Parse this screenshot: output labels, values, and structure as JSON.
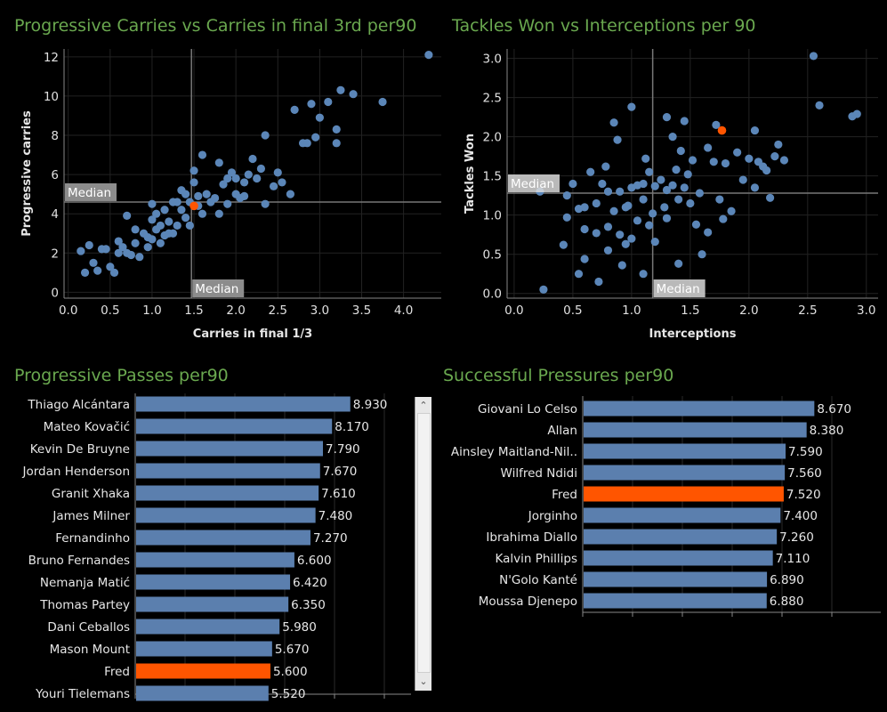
{
  "titles": {
    "carries": "Progressive Carries vs Carries in final 3rd per90",
    "tackles": "Tackles Won vs Interceptions per 90",
    "passes": "Progressive Passes per90",
    "pressures": "Successful Pressures per90"
  },
  "colors": {
    "accent": "#6aa84f",
    "point": "#5b86b8",
    "highlight": "#ff5500",
    "bar": "#5b7fae"
  },
  "chart_data": [
    {
      "type": "scatter",
      "title": "Progressive Carries vs Carries in final 3rd per90",
      "xlabel": "Carries in final 1/3",
      "ylabel": "Progressive carries",
      "xlim": [
        -0.05,
        4.45
      ],
      "ylim": [
        -0.3,
        12.4
      ],
      "xticks": [
        "0.0",
        "0.5",
        "1.0",
        "1.5",
        "2.0",
        "2.5",
        "3.0",
        "3.5",
        "4.0"
      ],
      "yticks": [
        "0",
        "2",
        "4",
        "6",
        "8",
        "10",
        "12"
      ],
      "median_x": 1.47,
      "median_y": 4.6,
      "median_label": "Median",
      "highlight": {
        "name": "Fred",
        "x": 1.5,
        "y": 4.4
      },
      "points": [
        [
          0.15,
          2.1
        ],
        [
          0.2,
          1.0
        ],
        [
          0.25,
          2.4
        ],
        [
          0.3,
          1.5
        ],
        [
          0.4,
          2.2
        ],
        [
          0.45,
          2.2
        ],
        [
          0.5,
          1.3
        ],
        [
          0.55,
          1.0
        ],
        [
          0.6,
          2.0
        ],
        [
          0.6,
          2.6
        ],
        [
          0.65,
          2.3
        ],
        [
          0.7,
          2.0
        ],
        [
          0.7,
          3.9
        ],
        [
          0.75,
          1.9
        ],
        [
          0.8,
          2.5
        ],
        [
          0.8,
          3.2
        ],
        [
          0.85,
          1.8
        ],
        [
          0.9,
          3.0
        ],
        [
          0.95,
          2.3
        ],
        [
          0.95,
          2.8
        ],
        [
          1.0,
          4.5
        ],
        [
          1.0,
          3.7
        ],
        [
          1.0,
          2.7
        ],
        [
          1.05,
          3.2
        ],
        [
          1.05,
          4.0
        ],
        [
          1.1,
          2.5
        ],
        [
          1.1,
          3.4
        ],
        [
          1.15,
          4.2
        ],
        [
          1.2,
          3.0
        ],
        [
          1.2,
          3.6
        ],
        [
          1.25,
          3.0
        ],
        [
          1.25,
          4.6
        ],
        [
          1.3,
          3.4
        ],
        [
          1.3,
          4.6
        ],
        [
          1.35,
          4.2
        ],
        [
          1.4,
          3.8
        ],
        [
          1.4,
          5.0
        ],
        [
          1.45,
          4.6
        ],
        [
          1.45,
          3.4
        ],
        [
          1.5,
          5.6
        ],
        [
          1.5,
          6.2
        ],
        [
          1.55,
          4.4
        ],
        [
          1.55,
          4.9
        ],
        [
          1.6,
          7.0
        ],
        [
          1.6,
          4.0
        ],
        [
          1.65,
          5.0
        ],
        [
          1.7,
          4.6
        ],
        [
          1.75,
          4.8
        ],
        [
          1.8,
          4.0
        ],
        [
          1.8,
          6.6
        ],
        [
          1.85,
          5.5
        ],
        [
          1.9,
          4.5
        ],
        [
          1.9,
          5.8
        ],
        [
          1.95,
          6.1
        ],
        [
          2.0,
          5.0
        ],
        [
          2.0,
          5.8
        ],
        [
          2.05,
          4.8
        ],
        [
          2.1,
          5.6
        ],
        [
          2.15,
          6.0
        ],
        [
          2.2,
          6.8
        ],
        [
          2.25,
          5.8
        ],
        [
          2.3,
          6.3
        ],
        [
          2.35,
          4.5
        ],
        [
          2.35,
          8.0
        ],
        [
          2.45,
          5.4
        ],
        [
          2.5,
          6.1
        ],
        [
          2.55,
          5.6
        ],
        [
          2.65,
          5.0
        ],
        [
          2.7,
          9.3
        ],
        [
          2.8,
          7.6
        ],
        [
          2.85,
          7.6
        ],
        [
          2.9,
          9.6
        ],
        [
          2.95,
          7.9
        ],
        [
          3.0,
          8.9
        ],
        [
          3.1,
          9.7
        ],
        [
          3.2,
          8.3
        ],
        [
          3.2,
          7.6
        ],
        [
          3.25,
          10.3
        ],
        [
          3.4,
          10.1
        ],
        [
          3.75,
          9.7
        ],
        [
          4.3,
          12.1
        ],
        [
          2.1,
          4.9
        ],
        [
          1.35,
          5.2
        ],
        [
          0.35,
          1.1
        ],
        [
          1.15,
          2.9
        ]
      ]
    },
    {
      "type": "scatter",
      "title": "Tackles Won vs Interceptions per 90",
      "xlabel": "Interceptions",
      "ylabel": "Tackles Won",
      "xlim": [
        -0.06,
        3.1
      ],
      "ylim": [
        -0.06,
        3.12
      ],
      "xticks": [
        "0.0",
        "0.5",
        "1.0",
        "1.5",
        "2.0",
        "2.5",
        "3.0"
      ],
      "yticks": [
        "0.0",
        "0.5",
        "1.0",
        "1.5",
        "2.0",
        "2.5",
        "3.0"
      ],
      "median_x": 1.18,
      "median_y": 1.28,
      "median_label": "Median",
      "highlight": {
        "name": "Fred",
        "x": 1.77,
        "y": 2.08
      },
      "points": [
        [
          0.22,
          1.3
        ],
        [
          0.25,
          0.05
        ],
        [
          0.42,
          0.62
        ],
        [
          0.45,
          1.25
        ],
        [
          0.45,
          0.97
        ],
        [
          0.5,
          1.4
        ],
        [
          0.55,
          1.08
        ],
        [
          0.6,
          0.82
        ],
        [
          0.6,
          0.44
        ],
        [
          0.65,
          1.55
        ],
        [
          0.7,
          1.15
        ],
        [
          0.7,
          0.77
        ],
        [
          0.75,
          1.4
        ],
        [
          0.8,
          1.3
        ],
        [
          0.8,
          0.55
        ],
        [
          0.8,
          0.85
        ],
        [
          0.85,
          1.05
        ],
        [
          0.88,
          1.96
        ],
        [
          0.9,
          1.3
        ],
        [
          0.9,
          0.75
        ],
        [
          0.92,
          0.36
        ],
        [
          0.95,
          0.63
        ],
        [
          0.95,
          1.1
        ],
        [
          1.0,
          1.35
        ],
        [
          1.0,
          0.7
        ],
        [
          1.05,
          1.38
        ],
        [
          1.05,
          0.93
        ],
        [
          1.1,
          1.4
        ],
        [
          1.1,
          1.2
        ],
        [
          1.12,
          1.72
        ],
        [
          1.15,
          0.87
        ],
        [
          1.18,
          1.02
        ],
        [
          1.2,
          1.37
        ],
        [
          1.2,
          0.66
        ],
        [
          1.25,
          1.45
        ],
        [
          1.28,
          1.1
        ],
        [
          1.3,
          1.32
        ],
        [
          1.3,
          0.96
        ],
        [
          1.35,
          1.38
        ],
        [
          1.35,
          2.0
        ],
        [
          1.38,
          1.58
        ],
        [
          1.4,
          1.2
        ],
        [
          1.42,
          1.82
        ],
        [
          1.45,
          2.2
        ],
        [
          1.48,
          1.52
        ],
        [
          1.5,
          1.15
        ],
        [
          1.52,
          1.7
        ],
        [
          1.55,
          0.88
        ],
        [
          1.58,
          1.28
        ],
        [
          1.6,
          0.5
        ],
        [
          1.65,
          1.86
        ],
        [
          1.7,
          1.68
        ],
        [
          1.72,
          2.15
        ],
        [
          1.75,
          1.2
        ],
        [
          1.78,
          0.95
        ],
        [
          1.8,
          1.66
        ],
        [
          1.85,
          1.05
        ],
        [
          1.9,
          1.8
        ],
        [
          1.95,
          1.45
        ],
        [
          2.0,
          1.72
        ],
        [
          2.05,
          2.08
        ],
        [
          2.08,
          1.68
        ],
        [
          2.12,
          1.62
        ],
        [
          2.15,
          1.57
        ],
        [
          2.18,
          1.22
        ],
        [
          2.22,
          1.75
        ],
        [
          2.25,
          1.9
        ],
        [
          2.3,
          1.7
        ],
        [
          2.55,
          3.03
        ],
        [
          2.6,
          2.4
        ],
        [
          2.88,
          2.26
        ],
        [
          2.92,
          2.29
        ],
        [
          1.4,
          0.38
        ],
        [
          0.85,
          2.18
        ],
        [
          1.0,
          2.38
        ],
        [
          0.97,
          1.12
        ],
        [
          0.55,
          0.25
        ],
        [
          1.1,
          0.25
        ],
        [
          0.72,
          0.15
        ],
        [
          1.3,
          2.25
        ],
        [
          0.78,
          1.62
        ],
        [
          1.65,
          0.78
        ],
        [
          0.6,
          1.1
        ],
        [
          1.15,
          1.55
        ],
        [
          1.45,
          1.35
        ],
        [
          2.05,
          1.35
        ]
      ]
    },
    {
      "type": "bar",
      "orientation": "horizontal",
      "title": "Progressive Passes per90",
      "xlim": [
        0,
        11.5
      ],
      "highlight": "Fred",
      "categories": [
        "Thiago Alcántara",
        "Mateo Kovačić",
        "Kevin De Bruyne",
        "Jordan Henderson",
        "Granit Xhaka",
        "James Milner",
        "Fernandinho",
        "Bruno Fernandes",
        "Nemanja Matić",
        "Thomas Partey",
        "Dani Ceballos",
        "Mason Mount",
        "Fred",
        "Youri Tielemans"
      ],
      "values": [
        8.93,
        8.17,
        7.79,
        7.67,
        7.61,
        7.48,
        7.27,
        6.6,
        6.42,
        6.35,
        5.98,
        5.67,
        5.6,
        5.52
      ],
      "labels": [
        "8.930",
        "8.170",
        "7.790",
        "7.670",
        "7.610",
        "7.480",
        "7.270",
        "6.600",
        "6.420",
        "6.350",
        "5.980",
        "5.670",
        "5.600",
        "5.520"
      ]
    },
    {
      "type": "bar",
      "orientation": "horizontal",
      "title": "Successful Pressures per90",
      "xlim": [
        0,
        11.2
      ],
      "highlight": "Fred",
      "categories": [
        "Giovani Lo Celso",
        "Allan",
        "Ainsley Maitland-Nil..",
        "Wilfred Ndidi",
        "Fred",
        "Jorginho",
        "Ibrahima Diallo",
        "Kalvin Phillips",
        "N'Golo Kanté",
        "Moussa Djenepo"
      ],
      "values": [
        8.67,
        8.38,
        7.59,
        7.56,
        7.52,
        7.4,
        7.26,
        7.11,
        6.89,
        6.88
      ],
      "labels": [
        "8.670",
        "8.380",
        "7.590",
        "7.560",
        "7.520",
        "7.400",
        "7.260",
        "7.110",
        "6.890",
        "6.880"
      ]
    }
  ]
}
